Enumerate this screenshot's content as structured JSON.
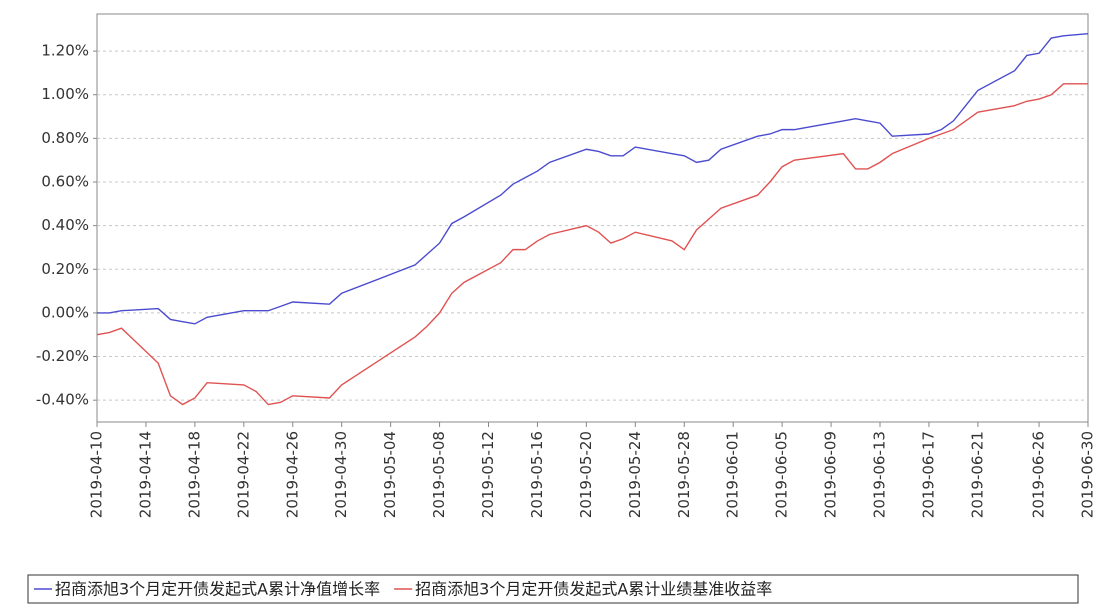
{
  "chart_data": {
    "type": "line",
    "x": [
      "2019-04-10",
      "2019-04-11",
      "2019-04-12",
      "2019-04-15",
      "2019-04-16",
      "2019-04-17",
      "2019-04-18",
      "2019-04-19",
      "2019-04-22",
      "2019-04-23",
      "2019-04-24",
      "2019-04-25",
      "2019-04-26",
      "2019-04-29",
      "2019-04-30",
      "2019-05-06",
      "2019-05-07",
      "2019-05-08",
      "2019-05-09",
      "2019-05-10",
      "2019-05-13",
      "2019-05-14",
      "2019-05-15",
      "2019-05-16",
      "2019-05-17",
      "2019-05-20",
      "2019-05-21",
      "2019-05-22",
      "2019-05-23",
      "2019-05-24",
      "2019-05-27",
      "2019-05-28",
      "2019-05-29",
      "2019-05-30",
      "2019-05-31",
      "2019-06-03",
      "2019-06-04",
      "2019-06-05",
      "2019-06-06",
      "2019-06-10",
      "2019-06-11",
      "2019-06-12",
      "2019-06-13",
      "2019-06-14",
      "2019-06-17",
      "2019-06-18",
      "2019-06-19",
      "2019-06-20",
      "2019-06-21",
      "2019-06-24",
      "2019-06-25",
      "2019-06-26",
      "2019-06-27",
      "2019-06-28",
      "2019-06-30"
    ],
    "series": [
      {
        "name": "招商添旭3个月定开债发起式A累计净值增长率",
        "color": "#4b4bd0",
        "values": [
          0.0,
          0.0,
          0.01,
          0.02,
          -0.03,
          -0.04,
          -0.05,
          -0.02,
          0.01,
          0.01,
          0.01,
          0.03,
          0.05,
          0.04,
          0.09,
          0.22,
          0.27,
          0.32,
          0.41,
          0.44,
          0.54,
          0.59,
          0.62,
          0.65,
          0.69,
          0.75,
          0.74,
          0.72,
          0.72,
          0.76,
          0.73,
          0.72,
          0.69,
          0.7,
          0.75,
          0.81,
          0.82,
          0.84,
          0.84,
          0.88,
          0.89,
          0.88,
          0.87,
          0.81,
          0.82,
          0.84,
          0.88,
          0.95,
          1.02,
          1.11,
          1.18,
          1.19,
          1.26,
          1.27,
          1.28
        ]
      },
      {
        "name": "招商添旭3个月定开债发起式A累计业绩基准收益率",
        "color": "#e05252",
        "values": [
          -0.1,
          -0.09,
          -0.07,
          -0.23,
          -0.38,
          -0.42,
          -0.39,
          -0.32,
          -0.33,
          -0.36,
          -0.42,
          -0.41,
          -0.38,
          -0.39,
          -0.33,
          -0.11,
          -0.06,
          0.0,
          0.09,
          0.14,
          0.23,
          0.29,
          0.29,
          0.33,
          0.36,
          0.4,
          0.37,
          0.32,
          0.34,
          0.37,
          0.33,
          0.29,
          0.38,
          0.43,
          0.48,
          0.54,
          0.6,
          0.67,
          0.7,
          0.73,
          0.66,
          0.66,
          0.69,
          0.73,
          0.8,
          0.82,
          0.84,
          0.88,
          0.92,
          0.95,
          0.97,
          0.98,
          1.0,
          1.05,
          1.05
        ]
      }
    ],
    "xlim": [
      "2019-04-10",
      "2019-06-30"
    ],
    "xticks": [
      "2019-04-10",
      "2019-04-14",
      "2019-04-18",
      "2019-04-22",
      "2019-04-26",
      "2019-04-30",
      "2019-05-04",
      "2019-05-08",
      "2019-05-12",
      "2019-05-16",
      "2019-05-20",
      "2019-05-24",
      "2019-05-28",
      "2019-06-01",
      "2019-06-05",
      "2019-06-09",
      "2019-06-13",
      "2019-06-17",
      "2019-06-21",
      "2019-06-26",
      "2019-06-30"
    ],
    "ylim": [
      -0.5,
      1.37
    ],
    "yticks": [
      {
        "value": -0.4,
        "label": "-0.40%"
      },
      {
        "value": -0.2,
        "label": "-0.20%"
      },
      {
        "value": 0,
        "label": "0.00%"
      },
      {
        "value": 0.2,
        "label": "0.20%"
      },
      {
        "value": 0.4,
        "label": "0.40%"
      },
      {
        "value": 0.6,
        "label": "0.60%"
      },
      {
        "value": 0.8,
        "label": "0.80%"
      },
      {
        "value": 1.0,
        "label": "1.00%"
      },
      {
        "value": 1.2,
        "label": "1.20%"
      }
    ],
    "grid": true
  }
}
